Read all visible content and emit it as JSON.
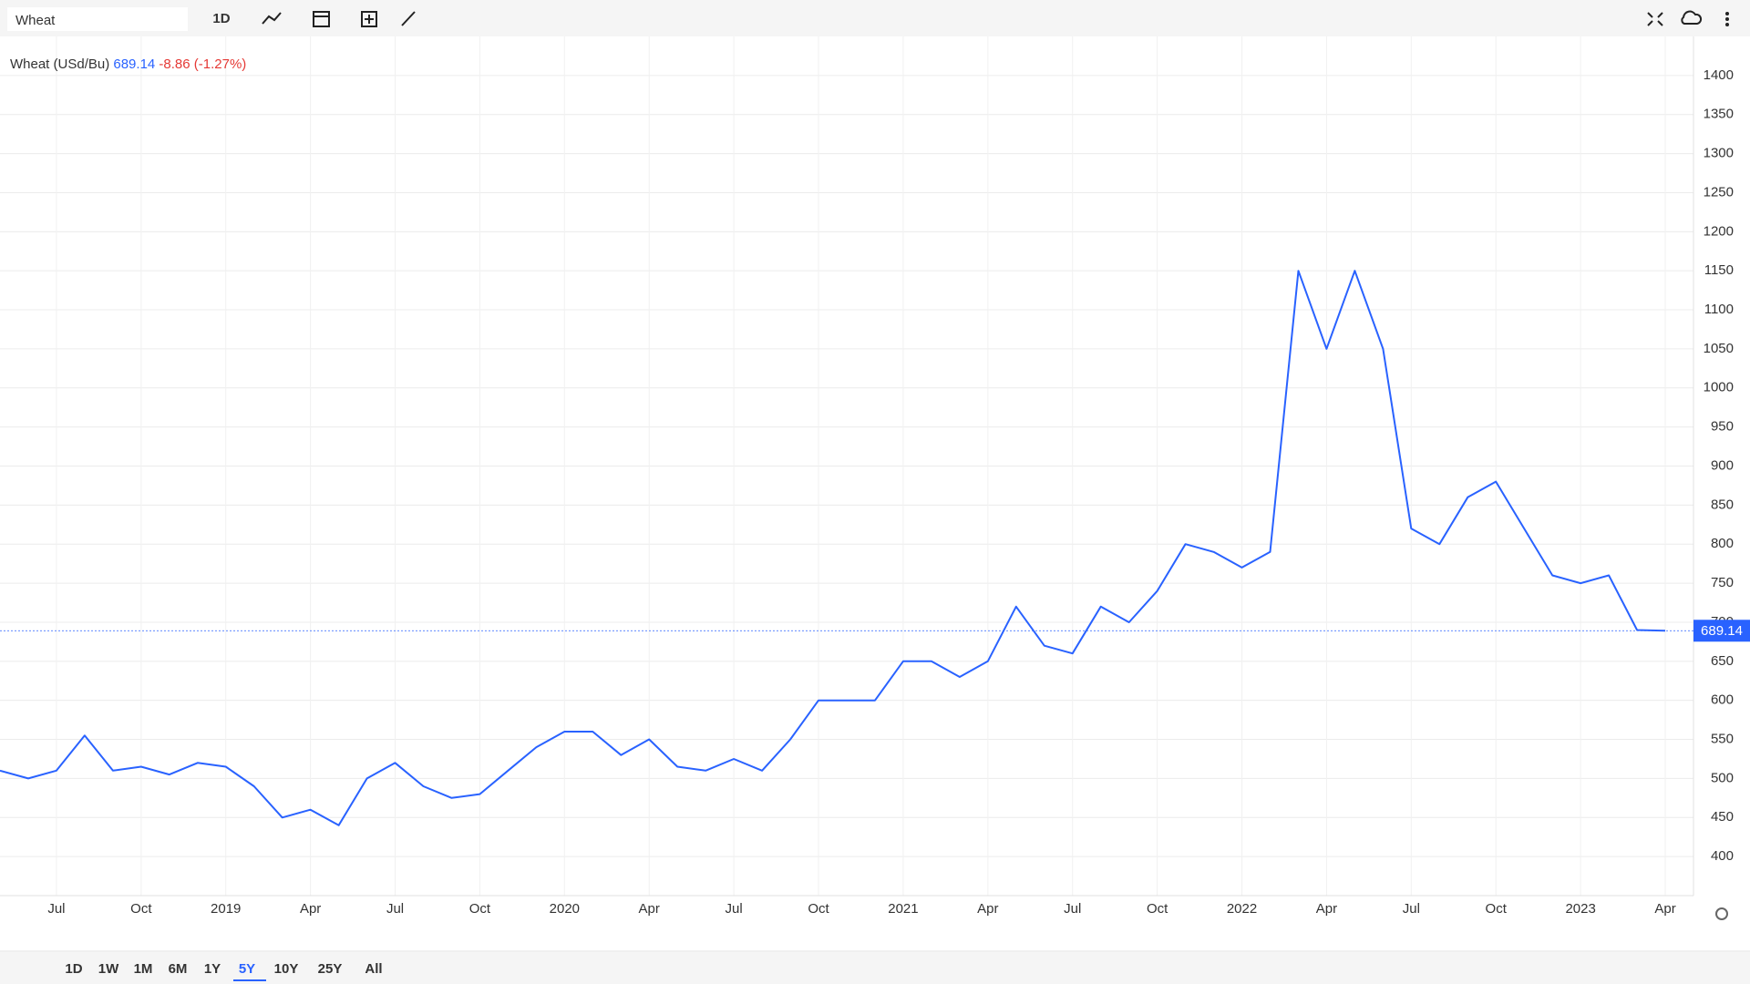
{
  "toolbar": {
    "search": "Wheat",
    "interval": "1D"
  },
  "chart_data": {
    "type": "line",
    "change_label": "-8.86 (-1.27%)",
    "x": [
      "2018-05",
      "2018-06",
      "2018-07",
      "2018-08",
      "2018-09",
      "2018-10",
      "2018-11",
      "2018-12",
      "2019-01",
      "2019-02",
      "2019-03",
      "2019-04",
      "2019-05",
      "2019-06",
      "2019-07",
      "2019-08",
      "2019-09",
      "2019-10",
      "2019-11",
      "2019-12",
      "2020-01",
      "2020-02",
      "2020-03",
      "2020-04",
      "2020-05",
      "2020-06",
      "2020-07",
      "2020-08",
      "2020-09",
      "2020-10",
      "2020-11",
      "2020-12",
      "2021-01",
      "2021-02",
      "2021-03",
      "2021-04",
      "2021-05",
      "2021-06",
      "2021-07",
      "2021-08",
      "2021-09",
      "2021-10",
      "2021-11",
      "2021-12",
      "2022-01",
      "2022-02",
      "2022-03",
      "2022-04",
      "2022-05",
      "2022-06",
      "2022-07",
      "2022-08",
      "2022-09",
      "2022-10",
      "2022-11",
      "2022-12",
      "2023-01",
      "2023-02",
      "2023-03",
      "2023-04"
    ],
    "series": [
      {
        "name": "Wheat (USd/Bu)",
        "color": "#2962ff",
        "values": [
          510,
          500,
          510,
          555,
          510,
          515,
          505,
          520,
          515,
          490,
          450,
          460,
          440,
          500,
          520,
          490,
          475,
          480,
          510,
          540,
          560,
          560,
          530,
          550,
          515,
          510,
          525,
          510,
          550,
          600,
          600,
          600,
          650,
          650,
          630,
          650,
          720,
          670,
          660,
          720,
          700,
          740,
          800,
          790,
          770,
          790,
          1150,
          1050,
          1150,
          1050,
          820,
          800,
          860,
          880,
          820,
          760,
          750,
          760,
          690,
          689.14
        ]
      }
    ],
    "xlim": [
      "2018-05",
      "2023-05"
    ],
    "xticks": [
      {
        "value": "2018-07",
        "label": "Jul"
      },
      {
        "value": "2018-10",
        "label": "Oct"
      },
      {
        "value": "2019-01",
        "label": "2019"
      },
      {
        "value": "2019-04",
        "label": "Apr"
      },
      {
        "value": "2019-07",
        "label": "Jul"
      },
      {
        "value": "2019-10",
        "label": "Oct"
      },
      {
        "value": "2020-01",
        "label": "2020"
      },
      {
        "value": "2020-04",
        "label": "Apr"
      },
      {
        "value": "2020-07",
        "label": "Jul"
      },
      {
        "value": "2020-10",
        "label": "Oct"
      },
      {
        "value": "2021-01",
        "label": "2021"
      },
      {
        "value": "2021-04",
        "label": "Apr"
      },
      {
        "value": "2021-07",
        "label": "Jul"
      },
      {
        "value": "2021-10",
        "label": "Oct"
      },
      {
        "value": "2022-01",
        "label": "2022"
      },
      {
        "value": "2022-04",
        "label": "Apr"
      },
      {
        "value": "2022-07",
        "label": "Jul"
      },
      {
        "value": "2022-10",
        "label": "Oct"
      },
      {
        "value": "2023-01",
        "label": "2023"
      },
      {
        "value": "2023-04",
        "label": "Apr"
      }
    ],
    "ylim": [
      350,
      1450
    ],
    "yticks": [
      400,
      450,
      500,
      550,
      600,
      650,
      700,
      750,
      800,
      850,
      900,
      950,
      1000,
      1050,
      1100,
      1150,
      1200,
      1250,
      1300,
      1350,
      1400
    ],
    "grid": true
  },
  "ranges": [
    "1D",
    "1W",
    "1M",
    "6M",
    "1Y",
    "5Y",
    "10Y",
    "25Y",
    "All"
  ],
  "active_range": "5Y"
}
